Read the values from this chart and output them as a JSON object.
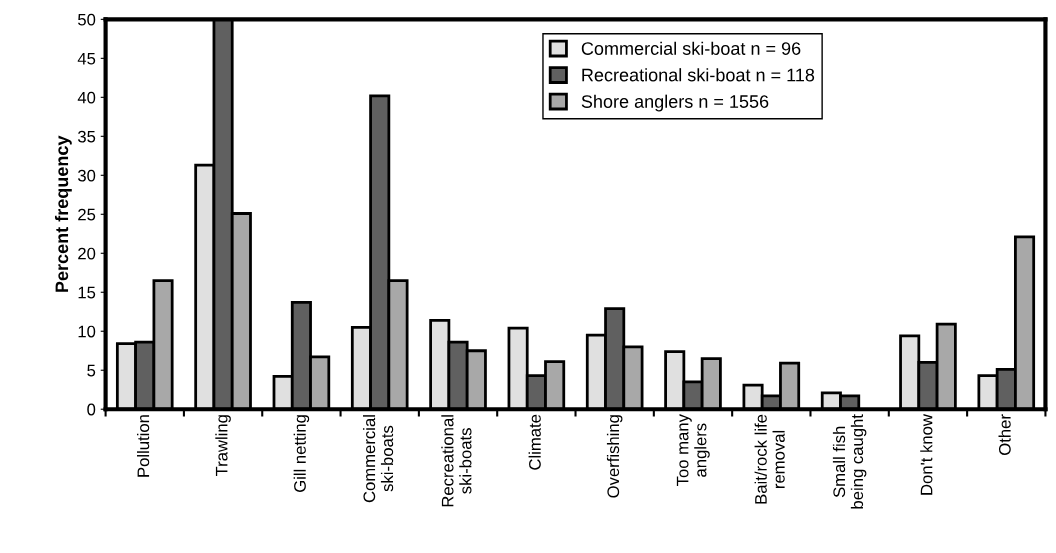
{
  "chart_data": {
    "type": "bar",
    "ylabel": "Percent frequency",
    "categories": [
      "Pollution",
      "Trawling",
      "Gill netting",
      "Commercial\nski-boats",
      "Recreational\nski-boats",
      "Climate",
      "Overfishing",
      "Too many\nanglers",
      "Bait/rock life\nremoval",
      "Small fish\nbeing caught",
      "Don't know",
      "Other"
    ],
    "series": [
      {
        "name": "Commercial ski-boat n = 96",
        "color": "#e0e0e0",
        "values": [
          8.4,
          31.3,
          4.2,
          10.5,
          11.4,
          10.4,
          9.5,
          7.4,
          3.1,
          2.1,
          9.4,
          4.3
        ]
      },
      {
        "name": "Recreational ski-boat n = 118",
        "color": "#606060",
        "values": [
          8.6,
          50,
          13.7,
          40.2,
          8.6,
          4.3,
          12.9,
          3.5,
          1.7,
          1.7,
          6.0,
          5.1
        ]
      },
      {
        "name": "Shore anglers n = 1556",
        "color": "#a8a8a8",
        "values": [
          16.5,
          25.1,
          6.7,
          16.5,
          7.5,
          6.1,
          8.0,
          6.5,
          5.9,
          null,
          10.9,
          22.1
        ]
      }
    ],
    "ylim": [
      0,
      50
    ],
    "yticks": [
      0,
      5,
      10,
      15,
      20,
      25,
      30,
      35,
      40,
      45,
      50
    ],
    "grid": false,
    "legend": "top"
  }
}
